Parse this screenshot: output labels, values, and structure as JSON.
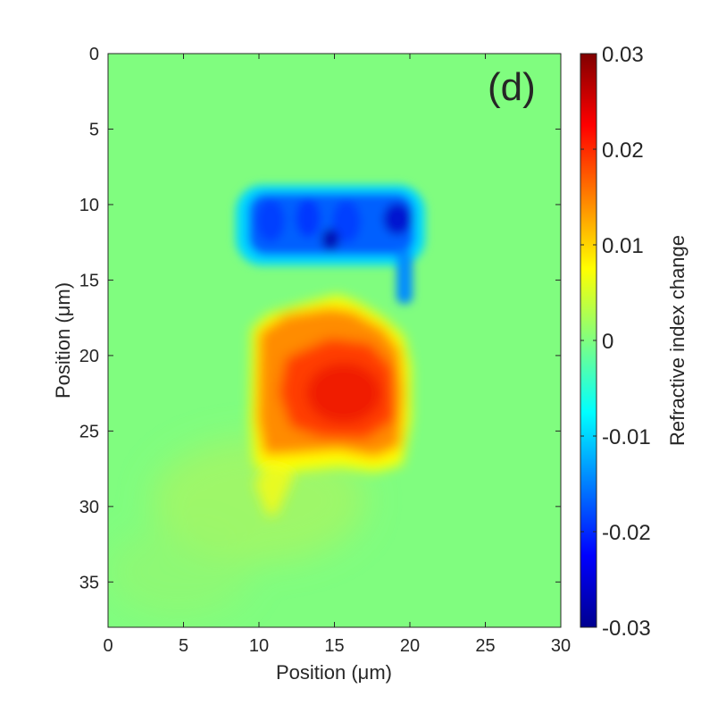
{
  "panel_label": "(d)",
  "chart_data": {
    "type": "heatmap",
    "xlabel": "Position (μm)",
    "ylabel": "Position (μm)",
    "colorbar_label": "Refractive index change",
    "colormap": "jet",
    "xlim": [
      0,
      30
    ],
    "ylim": [
      0,
      38
    ],
    "y_reversed": true,
    "x_ticks": [
      0,
      5,
      10,
      15,
      20,
      25,
      30
    ],
    "x_tick_labels": [
      "0",
      "5",
      "10",
      "15",
      "20",
      "25",
      "30"
    ],
    "y_ticks": [
      0,
      5,
      10,
      15,
      20,
      25,
      30,
      35
    ],
    "y_tick_labels": [
      "0",
      "5",
      "10",
      "15",
      "20",
      "25",
      "30",
      "35"
    ],
    "clim": [
      -0.03,
      0.03
    ],
    "colorbar_ticks": [
      0.03,
      0.02,
      0.01,
      0,
      -0.01,
      -0.02,
      -0.03
    ],
    "colorbar_tick_labels": [
      "0.03",
      "0.02",
      "0.01",
      "0",
      "-0.01",
      "-0.02",
      "-0.03"
    ],
    "background_value": 0.001,
    "regions": [
      {
        "name": "negative band",
        "x": [
          8.5,
          21
        ],
        "y": [
          8.5,
          14
        ],
        "value": -0.022
      },
      {
        "name": "negative spot",
        "x": [
          14,
          15.5
        ],
        "y": [
          12,
          13.5
        ],
        "value": -0.028
      },
      {
        "name": "negative spot",
        "x": [
          18.5,
          19.8
        ],
        "y": [
          10.5,
          12
        ],
        "value": -0.026
      },
      {
        "name": "negative tail",
        "x": [
          19,
          20
        ],
        "y": [
          14,
          16.5
        ],
        "value": -0.012
      },
      {
        "name": "positive region",
        "x": [
          9.5,
          20.5
        ],
        "y": [
          16,
          28
        ],
        "value": 0.017
      },
      {
        "name": "positive peak",
        "x": [
          13,
          19
        ],
        "y": [
          20,
          25.5
        ],
        "value": 0.022
      },
      {
        "name": "yellow fringe",
        "x": [
          8.5,
          21
        ],
        "y": [
          16,
          30
        ],
        "value": 0.008
      }
    ]
  }
}
